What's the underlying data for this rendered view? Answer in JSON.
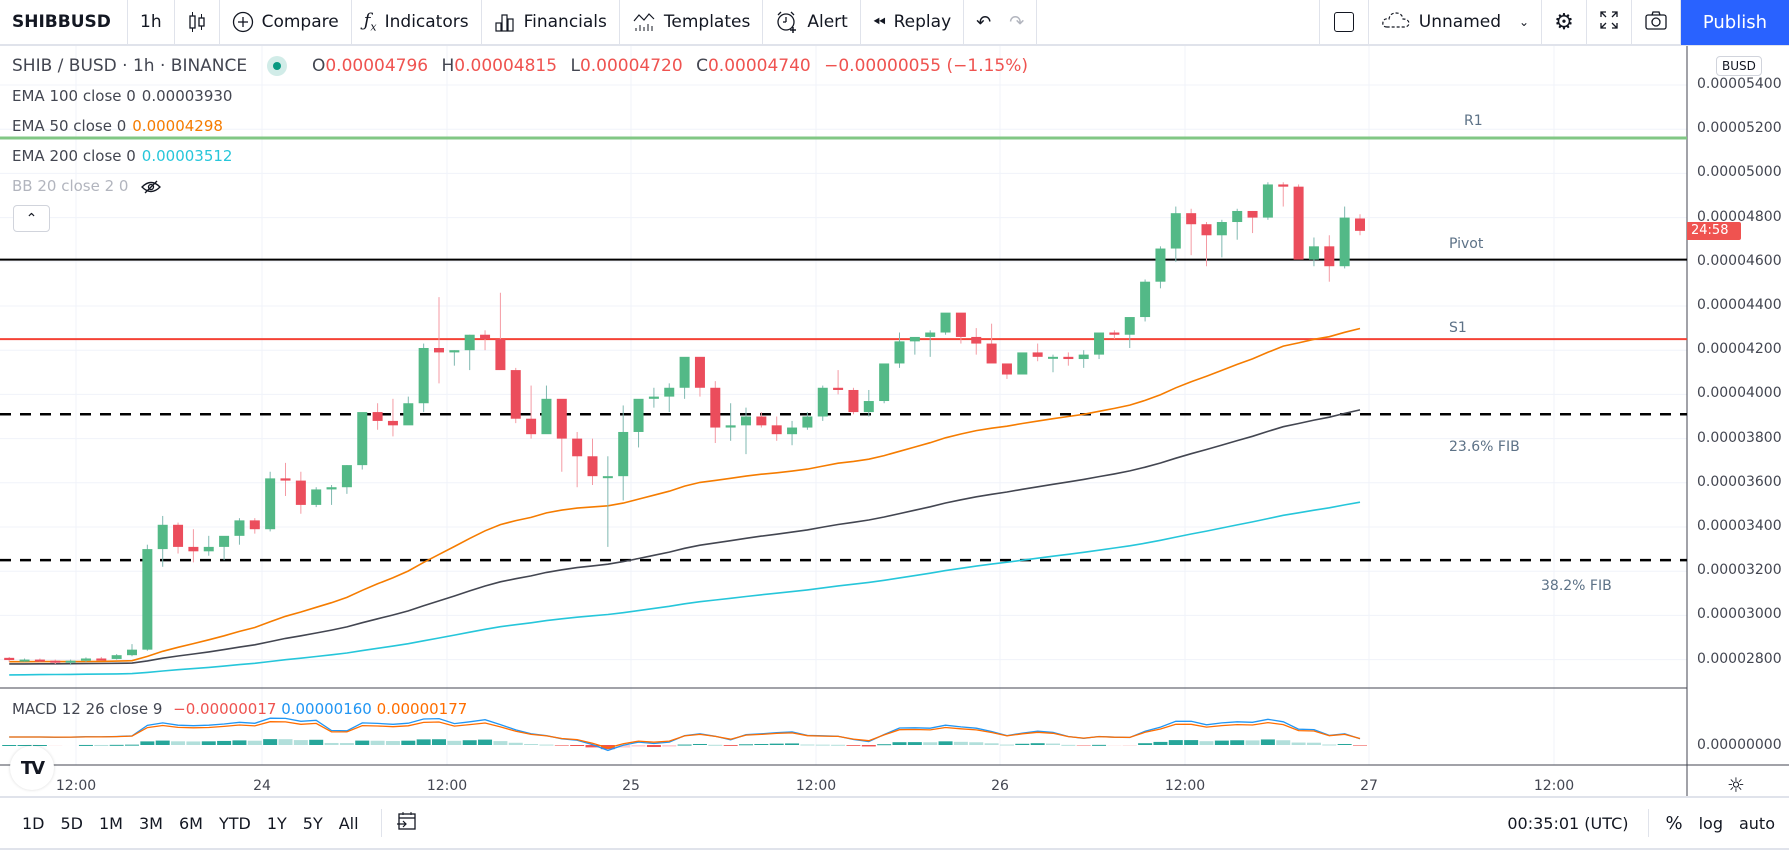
{
  "toolbar": {
    "symbol": "SHIBBUSD",
    "interval": "1h",
    "chart_type_icon": "candles-icon",
    "compare": "Compare",
    "indicators": "Indicators",
    "financials": "Financials",
    "templates": "Templates",
    "alert": "Alert",
    "replay": "Replay",
    "layout_name": "Unnamed",
    "publish": "Publish"
  },
  "legend": {
    "title": "SHIB / BUSD · 1h · BINANCE",
    "ohlc": {
      "o_label": "O",
      "o": "0.00004796",
      "h_label": "H",
      "h": "0.00004815",
      "l_label": "L",
      "l": "0.00004720",
      "c_label": "C",
      "c": "0.00004740",
      "change": "−0.00000055 (−1.15%)"
    },
    "indicators": [
      {
        "label": "EMA 100 close 0",
        "value": "0.00003930",
        "color": "#434651"
      },
      {
        "label": "EMA 50 close 0",
        "value": "0.00004298",
        "color": "#f57c00"
      },
      {
        "label": "EMA 200 close 0",
        "value": "0.00003512",
        "color": "#26c6da"
      },
      {
        "label": "BB 20 close 2 0",
        "value": "",
        "hidden": true
      }
    ],
    "macd": {
      "label": "MACD 12 26 close 9",
      "hist": "−0.00000017",
      "macd": "0.00000160",
      "signal": "0.00000177"
    }
  },
  "price_axis": {
    "currency": "BUSD",
    "ticks": [
      "0.00005400",
      "0.00005200",
      "0.00005000",
      "0.00004800",
      "0.00004600",
      "0.00004400",
      "0.00004200",
      "0.00004000",
      "0.00003800",
      "0.00003600",
      "0.00003400",
      "0.00003200",
      "0.00003000",
      "0.00002800"
    ],
    "macd_tick": "0.00000000",
    "countdown": "24:58"
  },
  "time_axis": {
    "labels": [
      "12:00",
      "24",
      "12:00",
      "25",
      "12:00",
      "26",
      "12:00",
      "27",
      "12:00"
    ]
  },
  "drawings": {
    "r1": "R1",
    "pivot": "Pivot",
    "s1": "S1",
    "fib236": "23.6% FIB",
    "fib382": "38.2% FIB"
  },
  "bottom_bar": {
    "ranges": [
      "1D",
      "5D",
      "1M",
      "3M",
      "6M",
      "YTD",
      "1Y",
      "5Y",
      "All"
    ],
    "clock": "00:35:01 (UTC)",
    "percent": "%",
    "log": "log",
    "auto": "auto"
  },
  "colors": {
    "up": "#53b987",
    "down": "#eb4d5c",
    "ema50": "#f57c00",
    "ema100": "#434651",
    "ema200": "#26c6da",
    "r1": "#81c784",
    "pivot": "#000000",
    "s1": "#f44336",
    "publish": "#2962ff"
  },
  "chart_data": {
    "type": "candlestick",
    "title": "SHIB / BUSD · 1h · BINANCE",
    "ylabel": "BUSD",
    "ylim": [
      2.7e-05,
      5.45e-05
    ],
    "x_labels": [
      "12:00",
      "24",
      "12:00",
      "25",
      "12:00",
      "26",
      "12:00",
      "27",
      "12:00"
    ],
    "candles_ohlc": [
      [
        2.808e-05,
        2.812e-05,
        2.79e-05,
        2.798e-05
      ],
      [
        2.795e-05,
        2.805e-05,
        2.79e-05,
        2.8e-05
      ],
      [
        2.8e-05,
        2.805e-05,
        2.79e-05,
        2.795e-05
      ],
      [
        2.795e-05,
        2.8e-05,
        2.78e-05,
        2.79e-05
      ],
      [
        2.79e-05,
        2.8e-05,
        2.775e-05,
        2.795e-05
      ],
      [
        2.795e-05,
        2.81e-05,
        2.79e-05,
        2.805e-05
      ],
      [
        2.805e-05,
        2.812e-05,
        2.798e-05,
        2.803e-05
      ],
      [
        2.803e-05,
        2.825e-05,
        2.8e-05,
        2.82e-05
      ],
      [
        2.82e-05,
        2.87e-05,
        2.815e-05,
        2.845e-05
      ],
      [
        2.845e-05,
        3.32e-05,
        2.84e-05,
        3.3e-05
      ],
      [
        3.3e-05,
        3.45e-05,
        3.22e-05,
        3.41e-05
      ],
      [
        3.41e-05,
        3.42e-05,
        3.28e-05,
        3.31e-05
      ],
      [
        3.31e-05,
        3.39e-05,
        3.24e-05,
        3.29e-05
      ],
      [
        3.29e-05,
        3.36e-05,
        3.27e-05,
        3.31e-05
      ],
      [
        3.31e-05,
        3.34e-05,
        3.25e-05,
        3.36e-05
      ],
      [
        3.36e-05,
        3.44e-05,
        3.32e-05,
        3.43e-05
      ],
      [
        3.43e-05,
        3.44e-05,
        3.37e-05,
        3.39e-05
      ],
      [
        3.39e-05,
        3.65e-05,
        3.38e-05,
        3.62e-05
      ],
      [
        3.62e-05,
        3.69e-05,
        3.54e-05,
        3.61e-05
      ],
      [
        3.61e-05,
        3.65e-05,
        3.46e-05,
        3.5e-05
      ],
      [
        3.5e-05,
        3.58e-05,
        3.49e-05,
        3.57e-05
      ],
      [
        3.57e-05,
        3.59e-05,
        3.5e-05,
        3.58e-05
      ],
      [
        3.58e-05,
        3.68e-05,
        3.55e-05,
        3.68e-05
      ],
      [
        3.68e-05,
        3.91e-05,
        3.66e-05,
        3.92e-05
      ],
      [
        3.92e-05,
        3.96e-05,
        3.84e-05,
        3.88e-05
      ],
      [
        3.88e-05,
        3.98e-05,
        3.81e-05,
        3.86e-05
      ],
      [
        3.86e-05,
        3.99e-05,
        3.87e-05,
        3.96e-05
      ],
      [
        3.96e-05,
        4.23e-05,
        3.92e-05,
        4.21e-05
      ],
      [
        4.21e-05,
        4.44e-05,
        4.05e-05,
        4.19e-05
      ],
      [
        4.19e-05,
        4.2e-05,
        4.13e-05,
        4.2e-05
      ],
      [
        4.2e-05,
        4.27e-05,
        4.11e-05,
        4.27e-05
      ],
      [
        4.27e-05,
        4.29e-05,
        4.2e-05,
        4.25e-05
      ],
      [
        4.25e-05,
        4.46e-05,
        4.17e-05,
        4.11e-05
      ],
      [
        4.11e-05,
        4.12e-05,
        3.87e-05,
        3.89e-05
      ],
      [
        3.89e-05,
        4.04e-05,
        3.8e-05,
        3.82e-05
      ],
      [
        3.82e-05,
        4.04e-05,
        3.83e-05,
        3.98e-05
      ],
      [
        3.98e-05,
        3.95e-05,
        3.65e-05,
        3.8e-05
      ],
      [
        3.8e-05,
        3.83e-05,
        3.58e-05,
        3.72e-05
      ],
      [
        3.72e-05,
        3.8e-05,
        3.59e-05,
        3.63e-05
      ],
      [
        3.63e-05,
        3.72e-05,
        3.31e-05,
        3.63e-05
      ],
      [
        3.63e-05,
        3.95e-05,
        3.52e-05,
        3.83e-05
      ],
      [
        3.83e-05,
        3.96e-05,
        3.76e-05,
        3.98e-05
      ],
      [
        3.98e-05,
        4.03e-05,
        3.94e-05,
        3.99e-05
      ],
      [
        3.99e-05,
        4.05e-05,
        3.92e-05,
        4.03e-05
      ],
      [
        4.03e-05,
        4.16e-05,
        3.98e-05,
        4.17e-05
      ],
      [
        4.17e-05,
        4.16e-05,
        3.99e-05,
        4.03e-05
      ],
      [
        4.03e-05,
        4.06e-05,
        3.78e-05,
        3.85e-05
      ],
      [
        3.85e-05,
        3.96e-05,
        3.79e-05,
        3.86e-05
      ],
      [
        3.86e-05,
        3.94e-05,
        3.73e-05,
        3.9e-05
      ],
      [
        3.9e-05,
        3.92e-05,
        3.85e-05,
        3.86e-05
      ],
      [
        3.86e-05,
        3.9e-05,
        3.79e-05,
        3.82e-05
      ],
      [
        3.82e-05,
        3.88e-05,
        3.77e-05,
        3.85e-05
      ],
      [
        3.85e-05,
        3.92e-05,
        3.84e-05,
        3.9e-05
      ],
      [
        3.9e-05,
        4.04e-05,
        3.88e-05,
        4.03e-05
      ],
      [
        4.03e-05,
        4.11e-05,
        4e-05,
        4.02e-05
      ],
      [
        4.02e-05,
        4.03e-05,
        3.91e-05,
        3.92e-05
      ],
      [
        3.92e-05,
        4.02e-05,
        3.9e-05,
        3.97e-05
      ],
      [
        3.97e-05,
        4.12e-05,
        3.96e-05,
        4.14e-05
      ],
      [
        4.14e-05,
        4.28e-05,
        4.12e-05,
        4.24e-05
      ],
      [
        4.24e-05,
        4.25e-05,
        4.18e-05,
        4.26e-05
      ],
      [
        4.26e-05,
        4.29e-05,
        4.17e-05,
        4.28e-05
      ],
      [
        4.28e-05,
        4.36e-05,
        4.27e-05,
        4.37e-05
      ],
      [
        4.37e-05,
        4.36e-05,
        4.23e-05,
        4.26e-05
      ],
      [
        4.26e-05,
        4.3e-05,
        4.18e-05,
        4.23e-05
      ],
      [
        4.23e-05,
        4.32e-05,
        4.21e-05,
        4.14e-05
      ],
      [
        4.14e-05,
        4.13e-05,
        4.07e-05,
        4.09e-05
      ],
      [
        4.09e-05,
        4.15e-05,
        4.1e-05,
        4.19e-05
      ],
      [
        4.19e-05,
        4.23e-05,
        4.15e-05,
        4.17e-05
      ],
      [
        4.17e-05,
        4.18e-05,
        4.1e-05,
        4.17e-05
      ],
      [
        4.17e-05,
        4.19e-05,
        4.13e-05,
        4.16e-05
      ],
      [
        4.16e-05,
        4.2e-05,
        4.12e-05,
        4.18e-05
      ],
      [
        4.18e-05,
        4.27e-05,
        4.16e-05,
        4.28e-05
      ],
      [
        4.28e-05,
        4.29e-05,
        4.25e-05,
        4.27e-05
      ],
      [
        4.27e-05,
        4.31e-05,
        4.21e-05,
        4.35e-05
      ],
      [
        4.35e-05,
        4.52e-05,
        4.33e-05,
        4.51e-05
      ],
      [
        4.51e-05,
        4.67e-05,
        4.48e-05,
        4.66e-05
      ],
      [
        4.66e-05,
        4.85e-05,
        4.6e-05,
        4.82e-05
      ],
      [
        4.82e-05,
        4.84e-05,
        4.63e-05,
        4.77e-05
      ],
      [
        4.77e-05,
        4.78e-05,
        4.58e-05,
        4.72e-05
      ],
      [
        4.72e-05,
        4.79e-05,
        4.62e-05,
        4.78e-05
      ],
      [
        4.78e-05,
        4.84e-05,
        4.7e-05,
        4.83e-05
      ],
      [
        4.83e-05,
        4.83e-05,
        4.73e-05,
        4.8e-05
      ],
      [
        4.8e-05,
        4.96e-05,
        4.79e-05,
        4.95e-05
      ],
      [
        4.95e-05,
        4.96e-05,
        4.85e-05,
        4.94e-05
      ],
      [
        4.94e-05,
        4.95e-05,
        4.62e-05,
        4.61e-05
      ],
      [
        4.61e-05,
        4.71e-05,
        4.58e-05,
        4.67e-05
      ],
      [
        4.67e-05,
        4.72e-05,
        4.51e-05,
        4.58e-05
      ],
      [
        4.58e-05,
        4.85e-05,
        4.57e-05,
        4.8e-05
      ],
      [
        4.796e-05,
        4.815e-05,
        4.72e-05,
        4.74e-05
      ]
    ],
    "series": [
      {
        "name": "EMA 50",
        "last": 4.298e-05
      },
      {
        "name": "EMA 100",
        "last": 3.93e-05
      },
      {
        "name": "EMA 200",
        "last": 3.512e-05
      }
    ],
    "horizontal_lines": [
      {
        "name": "R1",
        "value": 5.16e-05
      },
      {
        "name": "Pivot",
        "value": 4.61e-05
      },
      {
        "name": "S1",
        "value": 4.25e-05
      },
      {
        "name": "23.6% FIB",
        "value": 3.91e-05
      },
      {
        "name": "38.2% FIB",
        "value": 3.25e-05
      }
    ],
    "macd": {
      "hist": -1.7e-07,
      "macd": 1.6e-06,
      "signal": 1.77e-06
    }
  }
}
